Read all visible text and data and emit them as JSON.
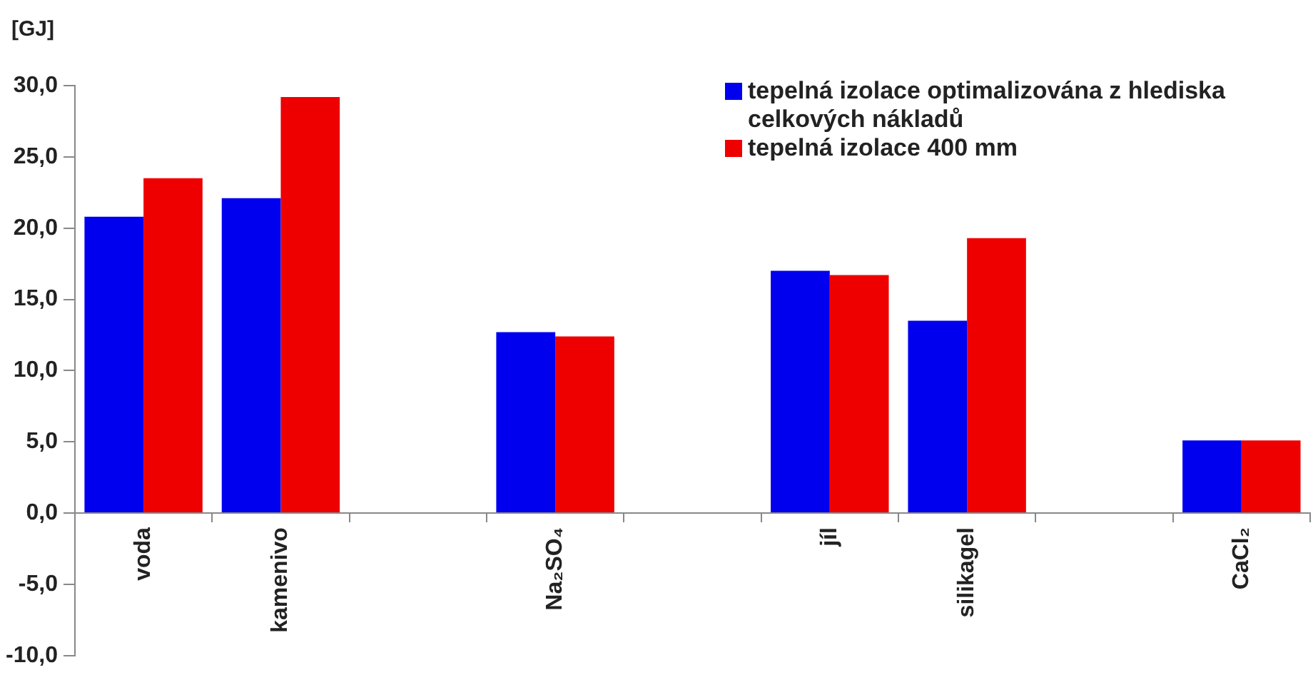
{
  "chart_data": {
    "type": "bar",
    "ylabel": "[GJ]",
    "categories": [
      "voda",
      "kamenivo",
      null,
      "Na₂SO₄",
      null,
      "jíl",
      "silikagel",
      null,
      "CaCl₂"
    ],
    "series": [
      {
        "name": "tepelná izolace optimalizována z hlediska celkových nákladů",
        "color": "#0000ee",
        "values": [
          20.8,
          22.1,
          null,
          12.7,
          null,
          17.0,
          13.5,
          null,
          5.1
        ]
      },
      {
        "name": "tepelná izolace 400 mm",
        "color": "#ee0000",
        "values": [
          23.5,
          29.2,
          null,
          12.4,
          null,
          16.7,
          19.3,
          null,
          5.1
        ]
      }
    ],
    "ylim": [
      -10,
      30
    ],
    "yticks": [
      {
        "value": -10,
        "label": "-10,0"
      },
      {
        "value": -5,
        "label": "-5,0"
      },
      {
        "value": 0,
        "label": "0,0"
      },
      {
        "value": 5,
        "label": "5,0"
      },
      {
        "value": 10,
        "label": "10,0"
      },
      {
        "value": 15,
        "label": "15,0"
      },
      {
        "value": 20,
        "label": "20,0"
      },
      {
        "value": 25,
        "label": "25,0"
      },
      {
        "value": 30,
        "label": "30,0"
      }
    ],
    "grid": false,
    "legend": "top right"
  }
}
